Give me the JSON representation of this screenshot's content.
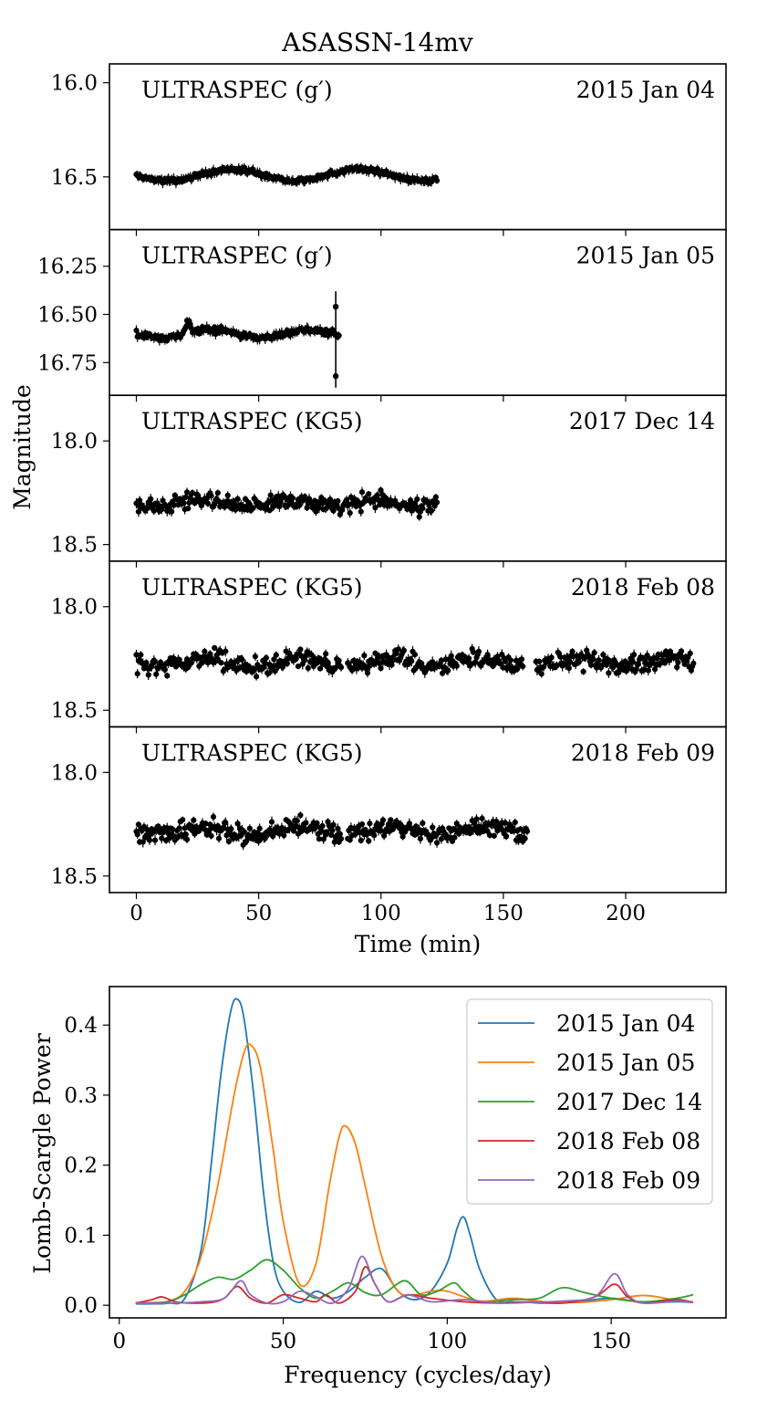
{
  "title": "ASASSN-14mv",
  "light_curves": {
    "xlabel": "Time (min)",
    "ylabel": "Magnitude",
    "xlim": [
      -11,
      241
    ],
    "xticks": [
      0,
      50,
      100,
      150,
      200
    ],
    "panels": [
      {
        "instrument": "ULTRASPEC (g′)",
        "date": "2015 Jan 04",
        "ylim": [
          15.9,
          16.78
        ],
        "yticks": [
          16.0,
          16.5
        ],
        "ytick_labels": [
          "16.0",
          "16.5"
        ],
        "duration": 123,
        "mean": 16.49,
        "amp": 0.03,
        "scatter": 0.01,
        "period": 52
      },
      {
        "instrument": "ULTRASPEC (g′)",
        "date": "2015 Jan 05",
        "ylim": [
          16.06,
          16.92
        ],
        "yticks": [
          16.25,
          16.5,
          16.75
        ],
        "ytick_labels": [
          "16.25",
          "16.50",
          "16.75"
        ],
        "duration": 83,
        "mean": 16.6,
        "amp": 0.02,
        "scatter": 0.015,
        "period": 40
      },
      {
        "instrument": "ULTRASPEC (KG5)",
        "date": "2017 Dec 14",
        "ylim": [
          17.78,
          18.58
        ],
        "yticks": [
          18.0,
          18.5
        ],
        "ytick_labels": [
          "18.0",
          "18.5"
        ],
        "duration": 123,
        "mean": 18.3,
        "amp": 0.02,
        "scatter": 0.035,
        "period": 35
      },
      {
        "instrument": "ULTRASPEC (KG5)",
        "date": "2018 Feb 08",
        "ylim": [
          17.78,
          18.58
        ],
        "yticks": [
          18.0,
          18.5
        ],
        "ytick_labels": [
          "18.0",
          "18.5"
        ],
        "duration": 228,
        "mean": 18.27,
        "amp": 0.02,
        "scatter": 0.04,
        "period": 38
      },
      {
        "instrument": "ULTRASPEC (KG5)",
        "date": "2018 Feb 09",
        "ylim": [
          17.78,
          18.58
        ],
        "yticks": [
          18.0,
          18.5
        ],
        "ytick_labels": [
          "18.0",
          "18.5"
        ],
        "duration": 160,
        "mean": 18.28,
        "amp": 0.02,
        "scatter": 0.04,
        "period": 38
      }
    ]
  },
  "chart_data": {
    "type": "line",
    "title": "",
    "xlabel": "Frequency (cycles/day)",
    "ylabel": "Lomb-Scargle Power",
    "xlim": [
      -3,
      185
    ],
    "ylim": [
      -0.018,
      0.455
    ],
    "xticks": [
      0,
      50,
      100,
      150
    ],
    "yticks": [
      0.0,
      0.1,
      0.2,
      0.3,
      0.4
    ],
    "ytick_labels": [
      "0.0",
      "0.1",
      "0.2",
      "0.3",
      "0.4"
    ],
    "legend_position": "top-right",
    "series": [
      {
        "name": "2015 Jan 04",
        "color": "#1f77b4",
        "x": [
          5,
          10,
          15,
          20,
          25,
          28,
          31,
          34,
          36,
          38,
          41,
          44,
          47,
          50,
          55,
          60,
          65,
          70,
          75,
          80,
          85,
          90,
          95,
          100,
          103,
          105,
          107,
          110,
          115,
          120,
          125,
          130,
          140,
          150,
          160,
          170,
          175
        ],
        "y": [
          0.002,
          0.002,
          0.003,
          0.01,
          0.08,
          0.2,
          0.33,
          0.42,
          0.437,
          0.41,
          0.3,
          0.16,
          0.06,
          0.02,
          0.004,
          0.02,
          0.01,
          0.02,
          0.04,
          0.052,
          0.02,
          0.008,
          0.02,
          0.06,
          0.11,
          0.126,
          0.1,
          0.05,
          0.008,
          0.005,
          0.004,
          0.003,
          0.005,
          0.01,
          0.004,
          0.005,
          0.004
        ]
      },
      {
        "name": "2015 Jan 05",
        "color": "#ff7f0e",
        "x": [
          5,
          10,
          15,
          20,
          25,
          30,
          35,
          38,
          40,
          43,
          47,
          50,
          55,
          60,
          64,
          67,
          69,
          72,
          75,
          80,
          85,
          90,
          95,
          100,
          110,
          120,
          130,
          140,
          150,
          160,
          170,
          175
        ],
        "y": [
          0.004,
          0.004,
          0.006,
          0.02,
          0.07,
          0.17,
          0.3,
          0.36,
          0.372,
          0.34,
          0.22,
          0.12,
          0.03,
          0.06,
          0.17,
          0.24,
          0.256,
          0.23,
          0.17,
          0.07,
          0.02,
          0.015,
          0.02,
          0.02,
          0.006,
          0.01,
          0.005,
          0.004,
          0.008,
          0.014,
          0.007,
          0.005
        ]
      },
      {
        "name": "2017 Dec 14",
        "color": "#2ca02c",
        "x": [
          5,
          10,
          15,
          20,
          25,
          30,
          35,
          40,
          45,
          50,
          55,
          60,
          65,
          70,
          75,
          80,
          87,
          92,
          97,
          102,
          105,
          110,
          120,
          128,
          135,
          142,
          150,
          160,
          170,
          175
        ],
        "y": [
          0.003,
          0.003,
          0.005,
          0.015,
          0.03,
          0.04,
          0.037,
          0.05,
          0.065,
          0.05,
          0.025,
          0.01,
          0.02,
          0.032,
          0.018,
          0.015,
          0.035,
          0.015,
          0.02,
          0.032,
          0.02,
          0.005,
          0.008,
          0.01,
          0.025,
          0.018,
          0.01,
          0.005,
          0.01,
          0.015
        ]
      },
      {
        "name": "2018 Feb 08",
        "color": "#d62728",
        "x": [
          5,
          10,
          13,
          17,
          22,
          28,
          32,
          36,
          40,
          45,
          50,
          55,
          60,
          63,
          67,
          72,
          75,
          78,
          82,
          88,
          95,
          105,
          115,
          125,
          135,
          145,
          151,
          155,
          160,
          170,
          175
        ],
        "y": [
          0.003,
          0.008,
          0.012,
          0.005,
          0.003,
          0.004,
          0.01,
          0.027,
          0.01,
          0.003,
          0.015,
          0.01,
          0.005,
          0.015,
          0.003,
          0.02,
          0.055,
          0.03,
          0.005,
          0.015,
          0.01,
          0.005,
          0.003,
          0.005,
          0.003,
          0.012,
          0.03,
          0.012,
          0.003,
          0.008,
          0.004
        ]
      },
      {
        "name": "2018 Feb 09",
        "color": "#9467bd",
        "x": [
          5,
          15,
          25,
          32,
          37,
          40,
          45,
          50,
          55,
          60,
          65,
          70,
          74,
          78,
          82,
          88,
          95,
          105,
          115,
          125,
          135,
          145,
          151,
          155,
          160,
          170,
          175
        ],
        "y": [
          0.003,
          0.003,
          0.005,
          0.01,
          0.035,
          0.015,
          0.003,
          0.005,
          0.02,
          0.012,
          0.003,
          0.025,
          0.07,
          0.03,
          0.005,
          0.015,
          0.005,
          0.008,
          0.003,
          0.004,
          0.006,
          0.012,
          0.045,
          0.015,
          0.003,
          0.006,
          0.004
        ]
      }
    ]
  }
}
